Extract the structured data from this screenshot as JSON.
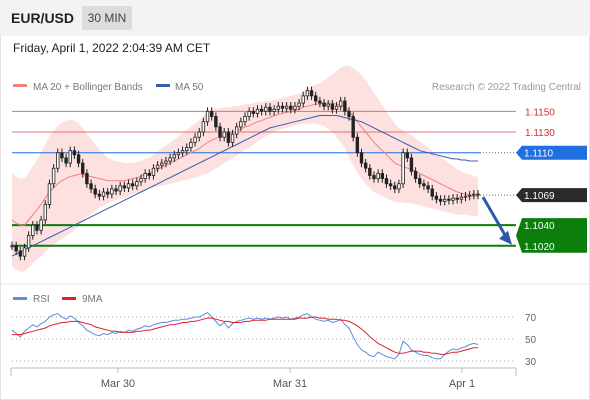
{
  "header": {
    "symbol": "EUR/USD",
    "timeframe_button": "30 MIN"
  },
  "datetime": "Friday, April 1, 2022 2:04:39 AM CET",
  "credit": "Research © 2022 Trading Central",
  "colors": {
    "bollinger": "#f08080",
    "bollinger_fill": "#fde0e0",
    "ma50": "#3a5ca8",
    "pivot_blue": "#1f6fe0",
    "support_green": "#0a7d0a",
    "resistance_red": "#e07070",
    "candle": "#222222",
    "rsi": "#5b8dd9",
    "rsi_ma": "#d9222a",
    "forecast_arrow": "#2d5aa6"
  },
  "chart_data": [
    {
      "type": "candlestick",
      "legend": [
        {
          "name": "MA 20 + Bollinger Bands",
          "color": "#f08080"
        },
        {
          "name": "MA 50",
          "color": "#3a5ca8"
        }
      ],
      "ylim": [
        1.0985,
        1.119
      ],
      "x_ticks": [
        "Mar 30",
        "Mar 31",
        "Apr 1"
      ],
      "levels": [
        {
          "value": 1.115,
          "label": "1.1150",
          "kind": "resistance"
        },
        {
          "value": 1.113,
          "label": "1.1130",
          "kind": "resistance"
        },
        {
          "value": 1.111,
          "label": "1.1110",
          "kind": "pivot"
        },
        {
          "value": 1.1069,
          "label": "1.1069",
          "kind": "last-price"
        },
        {
          "value": 1.104,
          "label": "1.1040",
          "kind": "support"
        },
        {
          "value": 1.102,
          "label": "1.1020",
          "kind": "support"
        }
      ],
      "close": [
        1.102,
        1.1015,
        1.101,
        1.1018,
        1.103,
        1.104,
        1.1035,
        1.1045,
        1.106,
        1.108,
        1.1095,
        1.111,
        1.1105,
        1.11,
        1.1112,
        1.1108,
        1.11,
        1.109,
        1.108,
        1.1075,
        1.107,
        1.1068,
        1.1072,
        1.107,
        1.1075,
        1.1073,
        1.1078,
        1.1076,
        1.108,
        1.1078,
        1.1082,
        1.1085,
        1.109,
        1.1088,
        1.1095,
        1.1098,
        1.11,
        1.1102,
        1.1105,
        1.1108,
        1.111,
        1.1112,
        1.1115,
        1.112,
        1.1125,
        1.113,
        1.114,
        1.115,
        1.1145,
        1.1135,
        1.1125,
        1.113,
        1.112,
        1.1128,
        1.1135,
        1.114,
        1.1145,
        1.115,
        1.1148,
        1.1152,
        1.115,
        1.1154,
        1.115,
        1.1152,
        1.1155,
        1.1153,
        1.1155,
        1.1152,
        1.1155,
        1.1158,
        1.1165,
        1.117,
        1.1165,
        1.116,
        1.1158,
        1.1155,
        1.1157,
        1.1152,
        1.1155,
        1.116,
        1.115,
        1.1145,
        1.1125,
        1.111,
        1.11,
        1.1095,
        1.1088,
        1.1085,
        1.109,
        1.1085,
        1.108,
        1.1078,
        1.1075,
        1.108,
        1.111,
        1.1105,
        1.1092,
        1.1085,
        1.108,
        1.1078,
        1.1075,
        1.1068,
        1.1065,
        1.1063,
        1.1065,
        1.1064,
        1.1066,
        1.1065,
        1.1067,
        1.1068,
        1.1069,
        1.107,
        1.1069
      ],
      "ma20": [
        1.1045,
        1.1042,
        1.104,
        1.104,
        1.1045,
        1.105,
        1.1055,
        1.106,
        1.1066,
        1.1072,
        1.1076,
        1.108,
        1.1083,
        1.1085,
        1.1087,
        1.1088,
        1.1089,
        1.1089,
        1.1088,
        1.1087,
        1.1086,
        1.1085,
        1.1084,
        1.1083,
        1.1083,
        1.1083,
        1.1083,
        1.1083,
        1.1084,
        1.1085,
        1.1086,
        1.1087,
        1.1089,
        1.109,
        1.1092,
        1.1094,
        1.1096,
        1.1098,
        1.11,
        1.1102,
        1.1104,
        1.1106,
        1.1108,
        1.111,
        1.1112,
        1.1114,
        1.1117,
        1.112,
        1.1122,
        1.1124,
        1.1125,
        1.1127,
        1.1128,
        1.113,
        1.1131,
        1.1133,
        1.1135,
        1.1136,
        1.1138,
        1.114,
        1.1141,
        1.1143,
        1.1144,
        1.1146,
        1.1147,
        1.1148,
        1.1149,
        1.115,
        1.1151,
        1.1152,
        1.1154,
        1.1155,
        1.1156,
        1.1157,
        1.1157,
        1.1158,
        1.1158,
        1.1158,
        1.1157,
        1.1156,
        1.1154,
        1.115,
        1.1145,
        1.114,
        1.1135,
        1.113,
        1.1125,
        1.112,
        1.1116,
        1.1112,
        1.1108,
        1.1104,
        1.11,
        1.1098,
        1.1097,
        1.1095,
        1.1094,
        1.1092,
        1.109,
        1.1088,
        1.1086,
        1.1084,
        1.1082,
        1.108,
        1.1078,
        1.1076,
        1.1074,
        1.1072,
        1.1071,
        1.107,
        1.1069,
        1.1068,
        1.1068
      ],
      "bb_width": [
        0.0045,
        0.0045,
        0.0045,
        0.0045,
        0.0046,
        0.0047,
        0.0048,
        0.005,
        0.0052,
        0.0054,
        0.0055,
        0.0056,
        0.0056,
        0.0056,
        0.0055,
        0.0053,
        0.005,
        0.0045,
        0.004,
        0.0036,
        0.0032,
        0.0028,
        0.0025,
        0.0022,
        0.002,
        0.0019,
        0.0018,
        0.0017,
        0.0016,
        0.0015,
        0.0015,
        0.0015,
        0.0015,
        0.0015,
        0.0016,
        0.0017,
        0.0018,
        0.0019,
        0.002,
        0.0021,
        0.0022,
        0.0023,
        0.0024,
        0.0025,
        0.0026,
        0.0027,
        0.0028,
        0.003,
        0.003,
        0.0029,
        0.0028,
        0.0027,
        0.0026,
        0.0025,
        0.0024,
        0.0023,
        0.0022,
        0.0021,
        0.002,
        0.0019,
        0.0018,
        0.0017,
        0.0016,
        0.0015,
        0.0015,
        0.0015,
        0.0015,
        0.0015,
        0.0015,
        0.0015,
        0.0016,
        0.0017,
        0.0018,
        0.0019,
        0.002,
        0.0022,
        0.0025,
        0.0028,
        0.0032,
        0.0036,
        0.004,
        0.0044,
        0.0047,
        0.0049,
        0.005,
        0.005,
        0.0049,
        0.0048,
        0.0046,
        0.0044,
        0.0042,
        0.004,
        0.0038,
        0.0036,
        0.0035,
        0.0034,
        0.0033,
        0.0032,
        0.0031,
        0.003,
        0.0029,
        0.0028,
        0.0027,
        0.0026,
        0.0025,
        0.0024,
        0.0023,
        0.0022,
        0.0021,
        0.002,
        0.002,
        0.0019,
        0.0019
      ],
      "ma50": [
        1.101,
        1.1012,
        1.1014,
        1.1016,
        1.1018,
        1.102,
        1.1022,
        1.1024,
        1.1026,
        1.1028,
        1.103,
        1.1032,
        1.1034,
        1.1036,
        1.1038,
        1.104,
        1.1042,
        1.1044,
        1.1046,
        1.1048,
        1.105,
        1.1052,
        1.1054,
        1.1056,
        1.1058,
        1.106,
        1.1062,
        1.1064,
        1.1066,
        1.1068,
        1.107,
        1.1072,
        1.1074,
        1.1076,
        1.1078,
        1.108,
        1.1082,
        1.1084,
        1.1086,
        1.1088,
        1.109,
        1.1092,
        1.1094,
        1.1096,
        1.1098,
        1.11,
        1.1102,
        1.1104,
        1.1106,
        1.1108,
        1.111,
        1.1112,
        1.1114,
        1.1116,
        1.1118,
        1.112,
        1.1122,
        1.1124,
        1.1126,
        1.1128,
        1.113,
        1.1132,
        1.1134,
        1.1135,
        1.1136,
        1.1137,
        1.1138,
        1.1139,
        1.114,
        1.1141,
        1.1142,
        1.1143,
        1.1144,
        1.1145,
        1.1146,
        1.1146,
        1.1146,
        1.1146,
        1.1146,
        1.1145,
        1.1144,
        1.1143,
        1.1142,
        1.1141,
        1.114,
        1.1138,
        1.1136,
        1.1134,
        1.1132,
        1.113,
        1.1128,
        1.1126,
        1.1124,
        1.1122,
        1.112,
        1.1118,
        1.1116,
        1.1114,
        1.1112,
        1.1111,
        1.111,
        1.1109,
        1.1108,
        1.1107,
        1.1106,
        1.1105,
        1.1104,
        1.1104,
        1.1103,
        1.1103,
        1.1102,
        1.1102,
        1.1102
      ]
    },
    {
      "type": "line",
      "legend": [
        {
          "name": "RSI",
          "color": "#5b8dd9"
        },
        {
          "name": "9MA",
          "color": "#d9222a"
        }
      ],
      "ylim": [
        20,
        80
      ],
      "y_ticks": [
        70,
        50,
        30
      ],
      "rsi": [
        58,
        55,
        52,
        57,
        60,
        63,
        61,
        64,
        66,
        70,
        72,
        73,
        70,
        68,
        71,
        69,
        65,
        62,
        58,
        56,
        54,
        53,
        55,
        54,
        56,
        55,
        57,
        56,
        58,
        57,
        59,
        60,
        62,
        61,
        63,
        64,
        65,
        65,
        66,
        67,
        67,
        68,
        68,
        69,
        70,
        70,
        72,
        74,
        70,
        66,
        62,
        65,
        60,
        64,
        66,
        67,
        68,
        69,
        68,
        69,
        68,
        69,
        68,
        69,
        70,
        69,
        70,
        68,
        69,
        70,
        72,
        73,
        70,
        68,
        67,
        66,
        67,
        65,
        66,
        68,
        63,
        60,
        52,
        45,
        40,
        38,
        35,
        34,
        38,
        36,
        34,
        33,
        32,
        36,
        48,
        45,
        40,
        38,
        36,
        35,
        35,
        33,
        32,
        32,
        36,
        39,
        41,
        40,
        42,
        43,
        45,
        46,
        45
      ],
      "rsi_ma": [
        54,
        54,
        54,
        55,
        56,
        57,
        58,
        59,
        60,
        62,
        63,
        64,
        65,
        65,
        66,
        66,
        66,
        65,
        64,
        63,
        61,
        60,
        59,
        58,
        57,
        57,
        56,
        56,
        56,
        56,
        57,
        57,
        58,
        58,
        59,
        60,
        61,
        62,
        63,
        63,
        64,
        65,
        65,
        66,
        66,
        67,
        68,
        69,
        69,
        68,
        67,
        66,
        66,
        65,
        65,
        65,
        66,
        66,
        67,
        67,
        67,
        67,
        68,
        68,
        68,
        68,
        68,
        68,
        68,
        69,
        69,
        69,
        70,
        70,
        69,
        69,
        68,
        68,
        68,
        67,
        67,
        66,
        64,
        62,
        59,
        56,
        52,
        49,
        46,
        44,
        42,
        40,
        38,
        37,
        37,
        38,
        39,
        39,
        39,
        38,
        38,
        37,
        37,
        36,
        36,
        37,
        38,
        38,
        39,
        40,
        41,
        42,
        42
      ]
    }
  ]
}
